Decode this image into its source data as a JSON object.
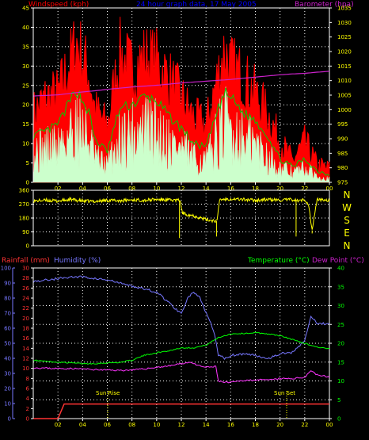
{
  "colors": {
    "background": "#000000",
    "grid": "#ffffff",
    "axis": "#ffffff",
    "windspeed_header": "#ff0000",
    "graph_header": "#0000ff",
    "barometer": "#cc22cc",
    "gust": "#ff0000",
    "avg": "#00cc00",
    "wind_base": "#ccffcc",
    "direction": "#ffff00",
    "rainfall": "#ff3333",
    "humidity": "#7777ff",
    "temperature": "#00ff00",
    "dewpoint": "#ff33ff",
    "tick_labels": "#ffff00",
    "compass": "#ffff00",
    "sun_label": "#ffff00"
  },
  "header": {
    "windspeed": "Windspeed (kph)",
    "graph": "24 hour graph data, 17 May 2005",
    "barometer": "Barometer (hpa)"
  },
  "middle_header": {
    "rainfall": "Rainfall (mm)",
    "humidity": "Humidity (%)",
    "temperature": "Temperature (°C)",
    "dewpoint": "Dew Point (°C)"
  },
  "compass": [
    "N",
    "W",
    "S",
    "E",
    "N"
  ],
  "sun": {
    "rise": "Sun Rise",
    "set": "Sun Set"
  },
  "chart_data": [
    {
      "type": "line",
      "x_ticks": [
        "02",
        "04",
        "06",
        "08",
        "10",
        "12",
        "14",
        "16",
        "18",
        "20",
        "22",
        "00"
      ],
      "xlim": [
        0,
        24
      ],
      "left_axis": {
        "ylim": [
          0,
          45
        ],
        "ticks": [
          "0",
          "5",
          "10",
          "15",
          "20",
          "25",
          "30",
          "35",
          "40",
          "45"
        ]
      },
      "right_axis": {
        "ylim": [
          975,
          1035
        ],
        "ticks": [
          "975",
          "980",
          "985",
          "990",
          "995",
          "1000",
          "1005",
          "1010",
          "1015",
          "1020",
          "1025",
          "1030",
          "1035"
        ]
      },
      "grid": "dotted",
      "series": [
        {
          "name": "Barometer",
          "axis": "right",
          "x": [
            0,
            1,
            2,
            3,
            4,
            5,
            6,
            7,
            8,
            9,
            10,
            11,
            12,
            13,
            14,
            15,
            16,
            17,
            18,
            19,
            20,
            21,
            22,
            23,
            24
          ],
          "y": [
            1004.7,
            1004.9,
            1005.1,
            1005.6,
            1006.1,
            1006.5,
            1007.0,
            1007.4,
            1007.8,
            1008.1,
            1008.4,
            1008.8,
            1009.2,
            1009.5,
            1009.8,
            1010.1,
            1010.4,
            1010.8,
            1011.2,
            1011.6,
            1012.0,
            1012.3,
            1012.5,
            1012.9,
            1013.2
          ]
        },
        {
          "name": "Gust",
          "axis": "left",
          "x": [
            0,
            1,
            2,
            3,
            3.5,
            4,
            4.5,
            5,
            6,
            7,
            8,
            9,
            10,
            11,
            12,
            13,
            14,
            15,
            15.5,
            16,
            17,
            18,
            19,
            20,
            21,
            22,
            23,
            24
          ],
          "y": [
            17,
            21,
            22,
            30,
            35,
            31,
            27,
            18,
            14,
            32,
            28,
            31,
            30,
            26,
            21,
            16,
            14,
            27,
            33,
            29,
            26,
            22,
            17,
            10,
            5,
            10,
            4,
            3
          ]
        },
        {
          "name": "Average",
          "axis": "left",
          "x": [
            0,
            1,
            2,
            3,
            3.5,
            4,
            4.5,
            5,
            6,
            7,
            8,
            9,
            10,
            11,
            12,
            13,
            14,
            15,
            15.5,
            16,
            17,
            18,
            19,
            20,
            21,
            22,
            23,
            24
          ],
          "y": [
            12,
            13,
            15,
            21,
            24,
            21,
            18,
            11,
            8,
            19,
            20,
            22,
            21,
            17,
            14,
            10,
            9,
            19,
            23,
            22,
            18,
            16,
            12,
            6,
            4,
            6,
            3,
            2
          ]
        },
        {
          "name": "Windspeed",
          "axis": "left",
          "x": [
            0,
            1,
            2,
            3,
            3.5,
            4,
            4.5,
            5,
            6,
            7,
            8,
            9,
            10,
            11,
            12,
            13,
            14,
            15,
            15.5,
            16,
            17,
            18,
            19,
            20,
            21,
            22,
            23,
            24
          ],
          "y": [
            9,
            10,
            11,
            15,
            17,
            15,
            13,
            7,
            5,
            13,
            15,
            16,
            15,
            12,
            10,
            7,
            6,
            14,
            17,
            16,
            13,
            11,
            8,
            4,
            3,
            4,
            2,
            1
          ]
        }
      ]
    },
    {
      "type": "line",
      "x_ticks": [
        "02",
        "04",
        "06",
        "08",
        "10",
        "12",
        "14",
        "16",
        "18",
        "20",
        "22",
        "00"
      ],
      "xlim": [
        0,
        24
      ],
      "left_axis": {
        "ylim": [
          0,
          360
        ],
        "ticks": [
          "0",
          "90",
          "180",
          "270",
          "360"
        ]
      },
      "series": [
        {
          "name": "Wind Direction",
          "axis": "left",
          "x": [
            0,
            1,
            2,
            3,
            4,
            5,
            6,
            7,
            8,
            9,
            10,
            11,
            11.9,
            12.1,
            13,
            14,
            14.9,
            15.1,
            16,
            17,
            18,
            19,
            20,
            21,
            21.5,
            22,
            22.3,
            22.6,
            23,
            24
          ],
          "y": [
            290,
            295,
            290,
            300,
            290,
            288,
            295,
            292,
            298,
            295,
            300,
            296,
            295,
            210,
            195,
            170,
            160,
            300,
            305,
            300,
            295,
            300,
            295,
            300,
            290,
            300,
            270,
            100,
            300,
            295
          ]
        }
      ]
    },
    {
      "type": "line",
      "x_ticks": [
        "02",
        "04",
        "06",
        "08",
        "10",
        "12",
        "14",
        "16",
        "18",
        "20",
        "22",
        "00"
      ],
      "xlim": [
        0,
        24
      ],
      "axes": {
        "rainfall": {
          "ylim": [
            0,
            30
          ],
          "ticks": [
            "0",
            "2",
            "4",
            "6",
            "8",
            "10",
            "12",
            "14",
            "16",
            "18",
            "20",
            "22",
            "24",
            "26",
            "28",
            "30"
          ]
        },
        "humidity": {
          "ylim": [
            0,
            100
          ],
          "ticks": [
            "0",
            "10",
            "20",
            "30",
            "40",
            "50",
            "60",
            "70",
            "80",
            "90",
            "100"
          ]
        },
        "temperature": {
          "ylim": [
            0,
            40
          ],
          "ticks": [
            "0",
            "5",
            "10",
            "15",
            "20",
            "25",
            "30",
            "35",
            "40"
          ]
        }
      },
      "series": [
        {
          "name": "Humidity",
          "axis": "humidity",
          "x": [
            0,
            1,
            2,
            3,
            4,
            5,
            6,
            7,
            8,
            9,
            10,
            11,
            11.5,
            12,
            12.5,
            13,
            13.5,
            14,
            14.5,
            14.8,
            15,
            15.5,
            16,
            17,
            18,
            19,
            20,
            21,
            22,
            22.5,
            23,
            24
          ],
          "y": [
            91,
            92,
            93,
            94,
            94,
            93,
            92,
            90,
            88,
            86,
            84,
            77,
            73,
            70,
            80,
            84,
            80,
            70,
            61,
            52,
            42,
            40,
            42,
            43,
            42,
            40,
            43,
            44,
            52,
            68,
            63,
            63
          ]
        },
        {
          "name": "Temperature",
          "axis": "temperature",
          "x": [
            0,
            1,
            2,
            3,
            4,
            5,
            6,
            7,
            8,
            9,
            10,
            11,
            12,
            13,
            14,
            15,
            16,
            17,
            18,
            19,
            20,
            21,
            22,
            23,
            24
          ],
          "y": [
            15.5,
            15.2,
            15.0,
            14.8,
            14.6,
            14.6,
            14.8,
            14.9,
            15.5,
            16.8,
            17.5,
            18.0,
            18.8,
            18.8,
            19.5,
            21.5,
            22.5,
            22.6,
            22.8,
            22.5,
            22.0,
            21.0,
            20.0,
            19.0,
            18.5
          ]
        },
        {
          "name": "Dew Point",
          "axis": "temperature",
          "x": [
            0,
            1,
            2,
            3,
            4,
            5,
            6,
            7,
            8,
            9,
            10,
            11,
            12,
            12.8,
            13.2,
            14,
            14.8,
            15,
            15.5,
            16,
            17,
            18,
            19,
            20,
            21,
            22,
            22.5,
            23,
            24
          ],
          "y": [
            13.5,
            13.4,
            13.3,
            13.3,
            13.2,
            13.0,
            12.9,
            12.8,
            12.9,
            13.2,
            13.6,
            14.0,
            14.6,
            15.0,
            14.2,
            13.6,
            13.8,
            10.0,
            9.6,
            9.6,
            10.1,
            10.3,
            10.2,
            10.6,
            10.6,
            11.0,
            12.8,
            11.6,
            11.0
          ]
        },
        {
          "name": "Rainfall",
          "axis": "rainfall",
          "x": [
            0,
            2,
            2.5,
            24
          ],
          "y": [
            0,
            0,
            2.9,
            2.9
          ]
        }
      ]
    }
  ]
}
